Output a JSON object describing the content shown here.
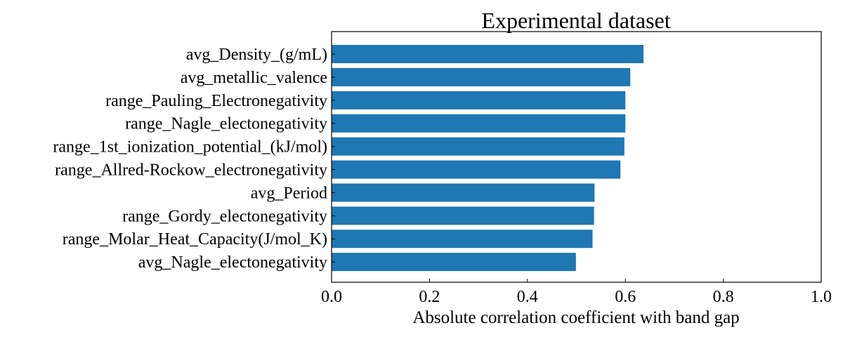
{
  "chart_data": {
    "type": "bar",
    "orientation": "horizontal",
    "title": "Experimental dataset",
    "xlabel": "Absolute correlation coefficient with band gap",
    "ylabel": "",
    "xlim": [
      0.0,
      1.0
    ],
    "xticks": [
      "0.0",
      "0.2",
      "0.4",
      "0.6",
      "0.8",
      "1.0"
    ],
    "tick_direction": "in",
    "grid": false,
    "legend": "none",
    "bar_color": "#1f77b4",
    "categories": [
      "avg_Density_(g/mL)",
      "avg_metallic_valence",
      "range_Pauling_Electronegativity",
      "range_Nagle_electonegativity",
      "range_1st_ionization_potential_(kJ/mol)",
      "range_Allred-Rockow_electronegativity",
      "avg_Period",
      "range_Gordy_electonegativity",
      "range_Molar_Heat_Capacity(J/mol_K)",
      "avg_Nagle_electonegativity"
    ],
    "values": [
      0.637,
      0.61,
      0.6,
      0.6,
      0.598,
      0.59,
      0.537,
      0.536,
      0.533,
      0.499
    ]
  }
}
